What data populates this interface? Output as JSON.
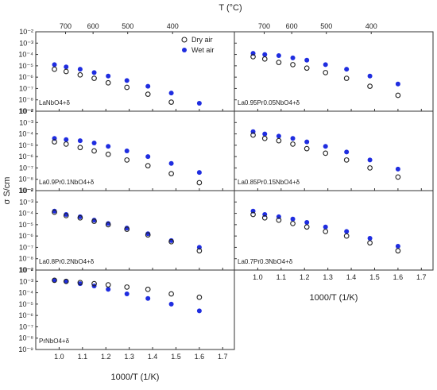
{
  "chart_data": {
    "type": "scatter",
    "ylabel": "σ S/cm",
    "top_axis": {
      "label": "T (°C)",
      "ticks": [
        700,
        600,
        500,
        400
      ]
    },
    "xlabel": "1000/T (1/K)",
    "xlim": [
      0.9,
      1.75
    ],
    "x_ticks": [
      "1.0",
      "1.1",
      "1.2",
      "1.3",
      "1.4",
      "1.5",
      "1.6",
      "1.7"
    ],
    "ylim_log10": [
      -9,
      -2
    ],
    "y_tick_labels": [
      "10⁻⁹",
      "10⁻⁸",
      "10⁻⁷",
      "10⁻⁶",
      "10⁻⁵",
      "10⁻⁴",
      "10⁻³",
      "10⁻²"
    ],
    "legend": {
      "placement": "top-center of first panel",
      "entries": [
        {
          "name": "Dry air",
          "marker": "open-circle",
          "color": "#222222"
        },
        {
          "name": "Wet air",
          "marker": "filled-circle",
          "color": "#1f2de0"
        }
      ]
    },
    "panels": [
      {
        "label": "LaNbO4+δ",
        "grid": [
          0,
          0
        ],
        "x": [
          0.98,
          1.03,
          1.09,
          1.15,
          1.21,
          1.29,
          1.38,
          1.48,
          1.6
        ],
        "dry": [
          -5.3,
          -5.5,
          -5.8,
          -6.1,
          -6.5,
          -6.9,
          -7.5,
          -8.2,
          null
        ],
        "wet": [
          -4.9,
          -5.1,
          -5.3,
          -5.6,
          -5.9,
          -6.3,
          -6.8,
          -7.4,
          -8.3
        ]
      },
      {
        "label": "La0.95Pr0.05NbO4+δ",
        "grid": [
          1,
          0
        ],
        "x": [
          0.98,
          1.03,
          1.09,
          1.15,
          1.21,
          1.29,
          1.38,
          1.48,
          1.6
        ],
        "dry": [
          -4.2,
          -4.4,
          -4.7,
          -4.9,
          -5.2,
          -5.6,
          -6.1,
          -6.8,
          -7.6
        ],
        "wet": [
          -3.9,
          -4.0,
          -4.1,
          -4.3,
          -4.5,
          -4.9,
          -5.3,
          -5.9,
          -6.6
        ]
      },
      {
        "label": "La0.9Pr0.1NbO4+δ",
        "grid": [
          0,
          1
        ],
        "x": [
          0.98,
          1.03,
          1.09,
          1.15,
          1.21,
          1.29,
          1.38,
          1.48,
          1.6
        ],
        "dry": [
          -4.7,
          -4.9,
          -5.2,
          -5.5,
          -5.8,
          -6.3,
          -6.8,
          -7.5,
          -8.3
        ],
        "wet": [
          -4.4,
          -4.5,
          -4.6,
          -4.8,
          -5.1,
          -5.5,
          -6.0,
          -6.6,
          -7.4
        ]
      },
      {
        "label": "La0.85Pr0.15NbO4+δ",
        "grid": [
          1,
          1
        ],
        "x": [
          0.98,
          1.03,
          1.09,
          1.15,
          1.21,
          1.29,
          1.38,
          1.48,
          1.6
        ],
        "dry": [
          -4.1,
          -4.4,
          -4.6,
          -4.9,
          -5.3,
          -5.7,
          -6.3,
          -7.0,
          -7.8
        ],
        "wet": [
          -3.8,
          -4.0,
          -4.2,
          -4.4,
          -4.7,
          -5.1,
          -5.6,
          -6.3,
          -7.1
        ]
      },
      {
        "label": "La0.8Pr0.2NbO4+δ",
        "grid": [
          0,
          2
        ],
        "x": [
          0.98,
          1.03,
          1.09,
          1.15,
          1.21,
          1.29,
          1.38,
          1.48,
          1.6
        ],
        "dry": [
          -3.9,
          -4.2,
          -4.4,
          -4.7,
          -5.0,
          -5.4,
          -5.9,
          -6.5,
          -7.3
        ],
        "wet": [
          -3.8,
          -4.1,
          -4.3,
          -4.6,
          -4.9,
          -5.3,
          -5.8,
          -6.4,
          -7.0
        ]
      },
      {
        "label": "La0.7Pr0.3NbO4+δ",
        "grid": [
          1,
          2
        ],
        "x": [
          0.98,
          1.03,
          1.09,
          1.15,
          1.21,
          1.29,
          1.38,
          1.48,
          1.6
        ],
        "dry": [
          -4.1,
          -4.4,
          -4.6,
          -4.9,
          -5.2,
          -5.6,
          -6.0,
          -6.6,
          -7.3
        ],
        "wet": [
          -3.8,
          -4.1,
          -4.3,
          -4.5,
          -4.8,
          -5.2,
          -5.6,
          -6.2,
          -6.9
        ]
      },
      {
        "label": "PrNbO4+δ",
        "grid": [
          0,
          3
        ],
        "x": [
          0.98,
          1.03,
          1.09,
          1.15,
          1.21,
          1.29,
          1.38,
          1.48,
          1.6
        ],
        "dry": [
          -2.9,
          -3.0,
          -3.1,
          -3.2,
          -3.3,
          -3.5,
          -3.7,
          -4.1,
          -4.4
        ],
        "wet": [
          -2.9,
          -3.0,
          -3.2,
          -3.4,
          -3.7,
          -4.1,
          -4.5,
          -5.0,
          -5.6
        ]
      }
    ]
  }
}
